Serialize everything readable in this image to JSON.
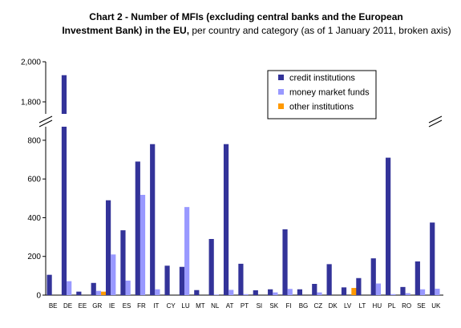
{
  "chart_data": {
    "type": "bar",
    "title_bold": "Chart 2 - Number of MFIs (excluding central banks and the European",
    "title_bold_2": "Investment Bank) in the EU,",
    "title_rest": " per country and category (as of 1 January 2011, broken axis)",
    "categories": [
      "BE",
      "DE",
      "EE",
      "GR",
      "IE",
      "ES",
      "FR",
      "IT",
      "CY",
      "LU",
      "MT",
      "NL",
      "AT",
      "PT",
      "SI",
      "SK",
      "FI",
      "BG",
      "CZ",
      "DK",
      "LV",
      "LT",
      "HU",
      "PL",
      "RO",
      "SE",
      "UK"
    ],
    "series": [
      {
        "name": "credit institutions",
        "color": "#333399",
        "values": [
          105,
          1933,
          18,
          63,
          490,
          335,
          690,
          780,
          152,
          146,
          26,
          290,
          780,
          162,
          25,
          30,
          340,
          30,
          58,
          160,
          40,
          88,
          190,
          710,
          42,
          174,
          375
        ]
      },
      {
        "name": "money market funds",
        "color": "#9999ff",
        "values": [
          0,
          72,
          0,
          22,
          210,
          75,
          518,
          30,
          0,
          455,
          0,
          3,
          27,
          5,
          0,
          14,
          32,
          0,
          14,
          0,
          0,
          0,
          60,
          5,
          10,
          30,
          33
        ]
      },
      {
        "name": "other institutions",
        "color": "#ff9900",
        "values": [
          0,
          0,
          0,
          18,
          0,
          0,
          0,
          0,
          0,
          0,
          0,
          0,
          0,
          0,
          0,
          0,
          0,
          0,
          0,
          0,
          37,
          0,
          0,
          0,
          0,
          0,
          0
        ]
      }
    ],
    "lower_ticks": [
      "0",
      "200",
      "400",
      "600",
      "800"
    ],
    "upper_ticks": [
      "1,800",
      "2,000"
    ],
    "lower_range": [
      0,
      870
    ],
    "upper_range": [
      1740,
      2000
    ],
    "legend_position": "top-right",
    "grid": false
  }
}
